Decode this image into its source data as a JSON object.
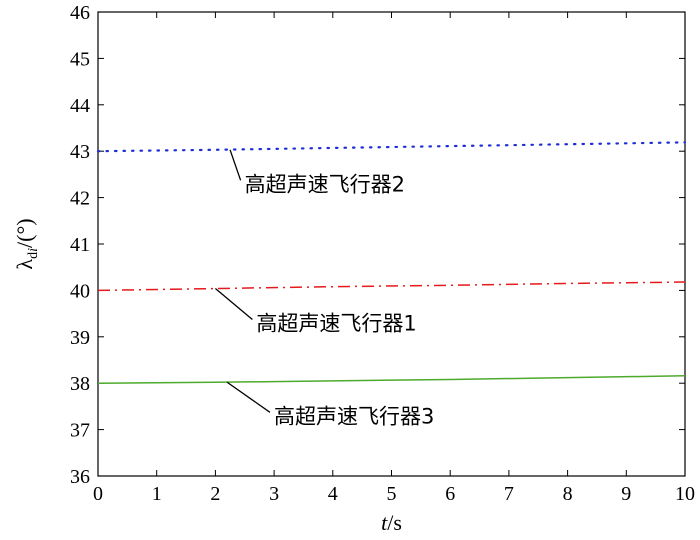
{
  "chart_data": {
    "type": "line",
    "title": "",
    "xlabel": {
      "italic": "t",
      "rest": "/s"
    },
    "ylabel": {
      "symbol": "λ",
      "sub": "d",
      "sub_italic": "i",
      "rest": "/(°)"
    },
    "xlim": [
      0,
      10
    ],
    "ylim": [
      36,
      46
    ],
    "xticks": [
      "0",
      "1",
      "2",
      "3",
      "4",
      "5",
      "6",
      "7",
      "8",
      "9",
      "10"
    ],
    "yticks": [
      "36",
      "37",
      "38",
      "39",
      "40",
      "41",
      "42",
      "43",
      "44",
      "45",
      "46"
    ],
    "grid": false,
    "series": [
      {
        "name": "高超声速飞行器2",
        "color": "#1f2fd6",
        "style": "dotted",
        "x": [
          0,
          2,
          4,
          6,
          8,
          10
        ],
        "y": [
          43.0,
          43.03,
          43.07,
          43.11,
          43.15,
          43.19
        ]
      },
      {
        "name": "高超声速飞行器1",
        "color": "#e41a1c",
        "style": "dashdot",
        "x": [
          0,
          2,
          4,
          6,
          8,
          10
        ],
        "y": [
          40.0,
          40.04,
          40.08,
          40.11,
          40.15,
          40.18
        ]
      },
      {
        "name": "高超声速飞行器3",
        "color": "#4daa2a",
        "style": "solid",
        "x": [
          0,
          2,
          4,
          6,
          8,
          10
        ],
        "y": [
          38.0,
          38.02,
          38.05,
          38.08,
          38.12,
          38.16
        ]
      }
    ],
    "annotations": [
      {
        "text": "高超声速飞行器2",
        "target_x": 2.25,
        "target_y": 43.03,
        "label_x": 2.6,
        "label_y": 42.2
      },
      {
        "text": "高超声速飞行器1",
        "target_x": 2.0,
        "target_y": 40.04,
        "label_x": 2.8,
        "label_y": 39.2
      },
      {
        "text": "高超声速飞行器3",
        "target_x": 2.2,
        "target_y": 38.02,
        "label_x": 3.1,
        "label_y": 37.2
      }
    ]
  }
}
